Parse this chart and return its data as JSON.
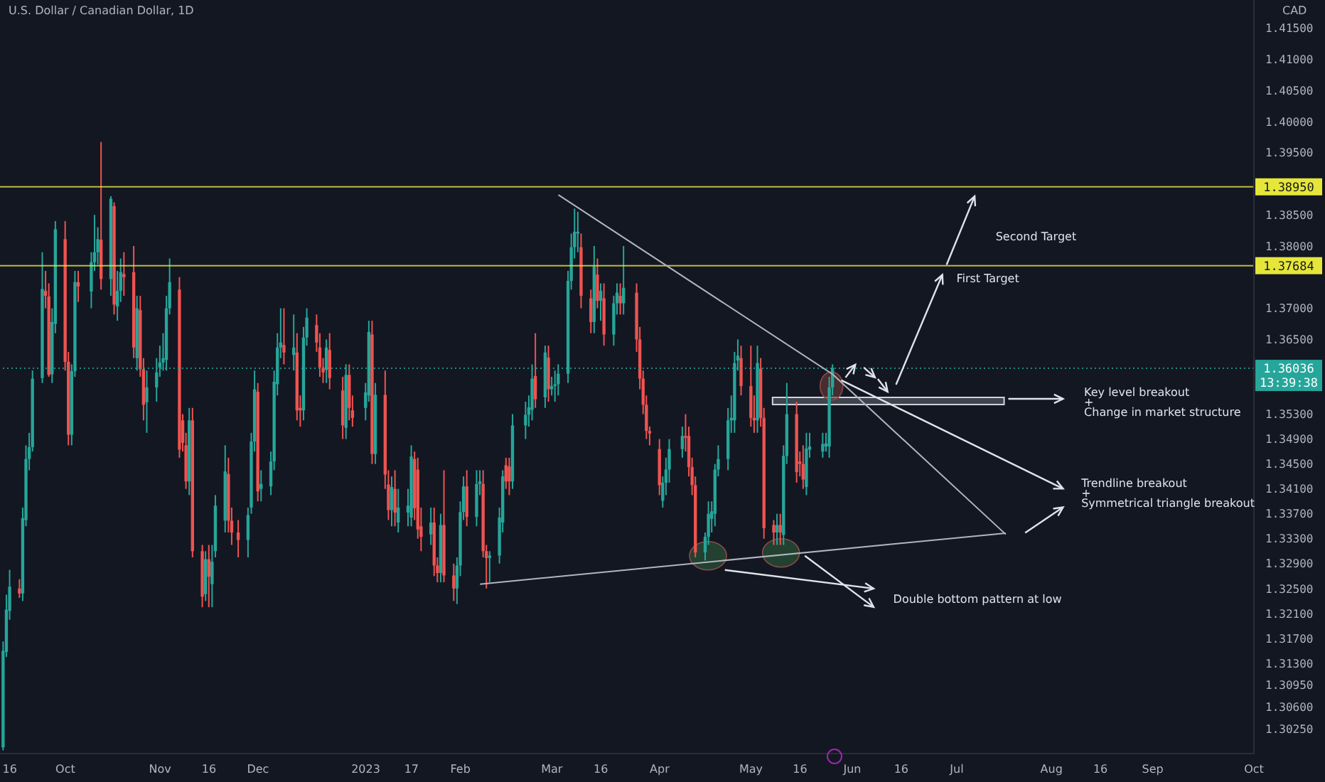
{
  "chart_data": {
    "type": "candlestick",
    "title": "U.S. Dollar / Canadian Dollar, 1D",
    "ylabel": "CAD",
    "marker": "none",
    "x": [
      "2022-09-14",
      "2022-09-15",
      "2022-09-16",
      "2022-09-19",
      "2022-09-20",
      "2022-09-21",
      "2022-09-22",
      "2022-09-23",
      "2022-09-26",
      "2022-09-27",
      "2022-09-28",
      "2022-09-29",
      "2022-09-30",
      "2022-10-03",
      "2022-10-04",
      "2022-10-05",
      "2022-10-06",
      "2022-10-07",
      "2022-10-11",
      "2022-10-12",
      "2022-10-13",
      "2022-10-14",
      "2022-10-17",
      "2022-10-18",
      "2022-10-19",
      "2022-10-20",
      "2022-10-21",
      "2022-10-24",
      "2022-10-25",
      "2022-10-26",
      "2022-10-27",
      "2022-10-28",
      "2022-10-31",
      "2022-11-01",
      "2022-11-02",
      "2022-11-03",
      "2022-11-04",
      "2022-11-07",
      "2022-11-08",
      "2022-11-09",
      "2022-11-10",
      "2022-11-11",
      "2022-11-14",
      "2022-11-15",
      "2022-11-16",
      "2022-11-17",
      "2022-11-18",
      "2022-11-21",
      "2022-11-22",
      "2022-11-23",
      "2022-11-25",
      "2022-11-28",
      "2022-11-29",
      "2022-11-30",
      "2022-12-01",
      "2022-12-02",
      "2022-12-05",
      "2022-12-06",
      "2022-12-07",
      "2022-12-08",
      "2022-12-09",
      "2022-12-12",
      "2022-12-13",
      "2022-12-14",
      "2022-12-15",
      "2022-12-16",
      "2022-12-19",
      "2022-12-20",
      "2022-12-21",
      "2022-12-22",
      "2022-12-23",
      "2022-12-27",
      "2022-12-28",
      "2022-12-29",
      "2022-12-30",
      "2023-01-03",
      "2023-01-04",
      "2023-01-05",
      "2023-01-06",
      "2023-01-09",
      "2023-01-10",
      "2023-01-11",
      "2023-01-12",
      "2023-01-13",
      "2023-01-16",
      "2023-01-17",
      "2023-01-18",
      "2023-01-19",
      "2023-01-20",
      "2023-01-23",
      "2023-01-24",
      "2023-01-25",
      "2023-01-26",
      "2023-01-27",
      "2023-01-30",
      "2023-01-31",
      "2023-02-01",
      "2023-02-02",
      "2023-02-03",
      "2023-02-06",
      "2023-02-07",
      "2023-02-08",
      "2023-02-09",
      "2023-02-10",
      "2023-02-13",
      "2023-02-14",
      "2023-02-15",
      "2023-02-16",
      "2023-02-17",
      "2023-02-21",
      "2023-02-22",
      "2023-02-23",
      "2023-02-24",
      "2023-02-27",
      "2023-02-28",
      "2023-03-01",
      "2023-03-02",
      "2023-03-03",
      "2023-03-06",
      "2023-03-07",
      "2023-03-08",
      "2023-03-09",
      "2023-03-10",
      "2023-03-13",
      "2023-03-14",
      "2023-03-15",
      "2023-03-16",
      "2023-03-17",
      "2023-03-20",
      "2023-03-21",
      "2023-03-22",
      "2023-03-23",
      "2023-03-27",
      "2023-03-28",
      "2023-03-29",
      "2023-03-30",
      "2023-03-31",
      "2023-04-03",
      "2023-04-04",
      "2023-04-05",
      "2023-04-06",
      "2023-04-10",
      "2023-04-11",
      "2023-04-12",
      "2023-04-13",
      "2023-04-14",
      "2023-04-17",
      "2023-04-18",
      "2023-04-19",
      "2023-04-20",
      "2023-04-21",
      "2023-04-24",
      "2023-04-25",
      "2023-04-26",
      "2023-04-27",
      "2023-04-28",
      "2023-05-01",
      "2023-05-02",
      "2023-05-03",
      "2023-05-04",
      "2023-05-05",
      "2023-05-08",
      "2023-05-09",
      "2023-05-10",
      "2023-05-11",
      "2023-05-12",
      "2023-05-15",
      "2023-05-16",
      "2023-05-17",
      "2023-05-18",
      "2023-05-19",
      "2023-05-23",
      "2023-05-24",
      "2023-05-25",
      "2023-05-26"
    ],
    "ohlc": [
      [
        1.2995,
        1.3165,
        1.299,
        1.315
      ],
      [
        1.3148,
        1.324,
        1.314,
        1.3216
      ],
      [
        1.3214,
        1.328,
        1.32,
        1.3253
      ],
      [
        1.325,
        1.3265,
        1.3235,
        1.3242
      ],
      [
        1.3242,
        1.338,
        1.323,
        1.3363
      ],
      [
        1.336,
        1.348,
        1.335,
        1.3458
      ],
      [
        1.3458,
        1.35,
        1.344,
        1.3477
      ],
      [
        1.3477,
        1.36,
        1.347,
        1.3587
      ],
      [
        1.3588,
        1.379,
        1.358,
        1.3731
      ],
      [
        1.3728,
        1.376,
        1.37,
        1.372
      ],
      [
        1.3719,
        1.374,
        1.359,
        1.3593
      ],
      [
        1.3594,
        1.37,
        1.358,
        1.3678
      ],
      [
        1.3675,
        1.384,
        1.366,
        1.3827
      ],
      [
        1.3811,
        1.384,
        1.36,
        1.3614
      ],
      [
        1.3614,
        1.363,
        1.348,
        1.3497
      ],
      [
        1.3497,
        1.361,
        1.348,
        1.3599
      ],
      [
        1.3599,
        1.376,
        1.359,
        1.3742
      ],
      [
        1.3742,
        1.376,
        1.371,
        1.3735
      ],
      [
        1.3727,
        1.379,
        1.37,
        1.3774
      ],
      [
        1.3774,
        1.385,
        1.376,
        1.379
      ],
      [
        1.379,
        1.383,
        1.377,
        1.3811
      ],
      [
        1.381,
        1.3967,
        1.373,
        1.3747
      ],
      [
        1.3747,
        1.388,
        1.372,
        1.3876
      ],
      [
        1.3864,
        1.387,
        1.369,
        1.3706
      ],
      [
        1.3703,
        1.376,
        1.368,
        1.3728
      ],
      [
        1.3728,
        1.378,
        1.371,
        1.3758
      ],
      [
        1.3755,
        1.379,
        1.372,
        1.375
      ],
      [
        1.3758,
        1.38,
        1.362,
        1.3637
      ],
      [
        1.362,
        1.372,
        1.36,
        1.37
      ],
      [
        1.3697,
        1.372,
        1.359,
        1.3602
      ],
      [
        1.3602,
        1.362,
        1.352,
        1.3545
      ],
      [
        1.3549,
        1.36,
        1.35,
        1.3573
      ],
      [
        1.3573,
        1.362,
        1.355,
        1.3597
      ],
      [
        1.3605,
        1.364,
        1.359,
        1.3613
      ],
      [
        1.3613,
        1.366,
        1.36,
        1.362
      ],
      [
        1.3617,
        1.372,
        1.36,
        1.37
      ],
      [
        1.37,
        1.378,
        1.369,
        1.3742
      ],
      [
        1.373,
        1.375,
        1.346,
        1.3473
      ],
      [
        1.352,
        1.353,
        1.347,
        1.3484
      ],
      [
        1.348,
        1.35,
        1.341,
        1.3422
      ],
      [
        1.3422,
        1.354,
        1.34,
        1.352
      ],
      [
        1.352,
        1.354,
        1.33,
        1.331
      ],
      [
        1.331,
        1.332,
        1.322,
        1.3237
      ],
      [
        1.3241,
        1.331,
        1.323,
        1.3297
      ],
      [
        1.3297,
        1.332,
        1.322,
        1.3269
      ],
      [
        1.3257,
        1.332,
        1.322,
        1.3293
      ],
      [
        1.331,
        1.34,
        1.33,
        1.3383
      ],
      [
        1.3359,
        1.348,
        1.334,
        1.3438
      ],
      [
        1.3434,
        1.346,
        1.334,
        1.3359
      ],
      [
        1.3359,
        1.338,
        1.332,
        1.334
      ],
      [
        1.334,
        1.336,
        1.33,
        1.3328
      ],
      [
        1.3328,
        1.338,
        1.33,
        1.3368
      ],
      [
        1.338,
        1.35,
        1.337,
        1.3486
      ],
      [
        1.3486,
        1.36,
        1.347,
        1.357
      ],
      [
        1.3566,
        1.358,
        1.339,
        1.3406
      ],
      [
        1.341,
        1.344,
        1.339,
        1.3418
      ],
      [
        1.3414,
        1.347,
        1.34,
        1.3454
      ],
      [
        1.3454,
        1.36,
        1.344,
        1.3582
      ],
      [
        1.3578,
        1.366,
        1.356,
        1.3637
      ],
      [
        1.3637,
        1.37,
        1.362,
        1.3645
      ],
      [
        1.3641,
        1.37,
        1.361,
        1.3629
      ],
      [
        1.3625,
        1.369,
        1.36,
        1.3637
      ],
      [
        1.3629,
        1.366,
        1.352,
        1.3536
      ],
      [
        1.354,
        1.356,
        1.351,
        1.3536
      ],
      [
        1.3536,
        1.367,
        1.352,
        1.3653
      ],
      [
        1.3653,
        1.37,
        1.364,
        1.3685
      ],
      [
        1.3673,
        1.369,
        1.363,
        1.3645
      ],
      [
        1.3637,
        1.366,
        1.359,
        1.3605
      ],
      [
        1.3605,
        1.362,
        1.358,
        1.3597
      ],
      [
        1.3601,
        1.365,
        1.358,
        1.3637
      ],
      [
        1.3633,
        1.366,
        1.357,
        1.3588
      ],
      [
        1.3568,
        1.359,
        1.349,
        1.3512
      ],
      [
        1.3508,
        1.361,
        1.349,
        1.3593
      ],
      [
        1.3593,
        1.361,
        1.352,
        1.354
      ],
      [
        1.3536,
        1.356,
        1.351,
        1.3524
      ],
      [
        1.354,
        1.358,
        1.352,
        1.3565
      ],
      [
        1.356,
        1.368,
        1.355,
        1.3662
      ],
      [
        1.3658,
        1.368,
        1.345,
        1.3466
      ],
      [
        1.3466,
        1.358,
        1.345,
        1.3561
      ],
      [
        1.3561,
        1.36,
        1.341,
        1.3433
      ],
      [
        1.3417,
        1.344,
        1.336,
        1.3376
      ],
      [
        1.3376,
        1.343,
        1.335,
        1.3413
      ],
      [
        1.341,
        1.344,
        1.335,
        1.3372
      ],
      [
        1.3356,
        1.341,
        1.334,
        1.338
      ],
      [
        1.3372,
        1.341,
        1.335,
        1.3383
      ],
      [
        1.3364,
        1.348,
        1.335,
        1.3462
      ],
      [
        1.3458,
        1.347,
        1.336,
        1.3379
      ],
      [
        1.3441,
        1.346,
        1.333,
        1.3345
      ],
      [
        1.335,
        1.338,
        1.331,
        1.3333
      ],
      [
        1.3337,
        1.338,
        1.332,
        1.3356
      ],
      [
        1.3356,
        1.338,
        1.327,
        1.3287
      ],
      [
        1.3287,
        1.33,
        1.326,
        1.3275
      ],
      [
        1.3275,
        1.337,
        1.326,
        1.3352
      ],
      [
        1.3352,
        1.344,
        1.326,
        1.3271
      ],
      [
        1.3271,
        1.329,
        1.323,
        1.325
      ],
      [
        1.325,
        1.33,
        1.3225,
        1.3287
      ],
      [
        1.3287,
        1.339,
        1.327,
        1.3373
      ],
      [
        1.3373,
        1.343,
        1.336,
        1.3414
      ],
      [
        1.3414,
        1.344,
        1.335,
        1.3365
      ],
      [
        1.3365,
        1.344,
        1.335,
        1.3418
      ],
      [
        1.3418,
        1.344,
        1.34,
        1.3422
      ],
      [
        1.3418,
        1.344,
        1.33,
        1.331
      ],
      [
        1.331,
        1.332,
        1.325,
        1.3299
      ],
      [
        1.3299,
        1.331,
        1.326,
        1.3303
      ],
      [
        1.3303,
        1.338,
        1.329,
        1.3364
      ],
      [
        1.3356,
        1.344,
        1.334,
        1.343
      ],
      [
        1.3448,
        1.346,
        1.341,
        1.3422
      ],
      [
        1.3446,
        1.346,
        1.34,
        1.3422
      ],
      [
        1.3422,
        1.353,
        1.341,
        1.3512
      ],
      [
        1.3512,
        1.355,
        1.349,
        1.3529
      ],
      [
        1.3529,
        1.356,
        1.351,
        1.3541
      ],
      [
        1.3537,
        1.361,
        1.352,
        1.3587
      ],
      [
        1.3591,
        1.366,
        1.354,
        1.3554
      ],
      [
        1.3557,
        1.364,
        1.354,
        1.3629
      ],
      [
        1.3621,
        1.364,
        1.355,
        1.357
      ],
      [
        1.357,
        1.359,
        1.356,
        1.3575
      ],
      [
        1.3575,
        1.36,
        1.355,
        1.3578
      ],
      [
        1.3578,
        1.361,
        1.356,
        1.3595
      ],
      [
        1.3595,
        1.376,
        1.358,
        1.3744
      ],
      [
        1.3744,
        1.382,
        1.373,
        1.3798
      ],
      [
        1.3798,
        1.386,
        1.378,
        1.3823
      ],
      [
        1.382,
        1.3855,
        1.379,
        1.3823
      ],
      [
        1.3798,
        1.382,
        1.37,
        1.372
      ],
      [
        1.3716,
        1.373,
        1.366,
        1.3678
      ],
      [
        1.3678,
        1.38,
        1.366,
        1.3767
      ],
      [
        1.3754,
        1.378,
        1.37,
        1.3712
      ],
      [
        1.3712,
        1.374,
        1.368,
        1.3728
      ],
      [
        1.3716,
        1.374,
        1.364,
        1.3658
      ],
      [
        1.3658,
        1.372,
        1.364,
        1.3708
      ],
      [
        1.3708,
        1.374,
        1.369,
        1.3725
      ],
      [
        1.372,
        1.374,
        1.369,
        1.3708
      ],
      [
        1.3708,
        1.38,
        1.369,
        1.3733
      ],
      [
        1.3725,
        1.374,
        1.363,
        1.365
      ],
      [
        1.365,
        1.367,
        1.357,
        1.3587
      ],
      [
        1.3587,
        1.36,
        1.353,
        1.3545
      ],
      [
        1.3545,
        1.356,
        1.349,
        1.3503
      ],
      [
        1.3503,
        1.351,
        1.348,
        1.3499
      ],
      [
        1.3474,
        1.349,
        1.34,
        1.3416
      ],
      [
        1.3391,
        1.343,
        1.338,
        1.342
      ],
      [
        1.342,
        1.346,
        1.34,
        1.3441
      ],
      [
        1.3441,
        1.349,
        1.342,
        1.3474
      ],
      [
        1.3474,
        1.351,
        1.346,
        1.3495
      ],
      [
        1.3495,
        1.353,
        1.347,
        1.3492
      ],
      [
        1.3495,
        1.351,
        1.343,
        1.3445
      ],
      [
        1.3445,
        1.346,
        1.34,
        1.3416
      ],
      [
        1.3416,
        1.343,
        1.33,
        1.3308
      ],
      [
        1.3308,
        1.334,
        1.3295,
        1.3333
      ],
      [
        1.3333,
        1.339,
        1.332,
        1.337
      ],
      [
        1.3362,
        1.339,
        1.334,
        1.3374
      ],
      [
        1.337,
        1.345,
        1.335,
        1.3441
      ],
      [
        1.3441,
        1.348,
        1.343,
        1.3458
      ],
      [
        1.3458,
        1.354,
        1.344,
        1.352
      ],
      [
        1.352,
        1.356,
        1.35,
        1.3524
      ],
      [
        1.352,
        1.363,
        1.35,
        1.3612
      ],
      [
        1.3616,
        1.365,
        1.36,
        1.3624
      ],
      [
        1.362,
        1.364,
        1.356,
        1.3575
      ],
      [
        1.3575,
        1.364,
        1.351,
        1.3524
      ],
      [
        1.3524,
        1.356,
        1.35,
        1.352
      ],
      [
        1.352,
        1.364,
        1.35,
        1.3612
      ],
      [
        1.3603,
        1.362,
        1.351,
        1.3524
      ],
      [
        1.3524,
        1.354,
        1.333,
        1.3347
      ],
      [
        1.3352,
        1.336,
        1.332,
        1.334
      ],
      [
        1.334,
        1.337,
        1.332,
        1.3352
      ],
      [
        1.3352,
        1.337,
        1.332,
        1.334
      ],
      [
        1.3336,
        1.348,
        1.332,
        1.3463
      ],
      [
        1.3463,
        1.358,
        1.345,
        1.353
      ],
      [
        1.353,
        1.355,
        1.342,
        1.3437
      ],
      [
        1.3454,
        1.347,
        1.343,
        1.345
      ],
      [
        1.345,
        1.348,
        1.341,
        1.3425
      ],
      [
        1.3413,
        1.35,
        1.34,
        1.3475
      ],
      [
        1.3473,
        1.35,
        1.346,
        1.3478
      ],
      [
        1.347,
        1.35,
        1.346,
        1.3482
      ],
      [
        1.3478,
        1.35,
        1.347,
        1.3483
      ],
      [
        1.3478,
        1.359,
        1.346,
        1.3573
      ],
      [
        1.3573,
        1.361,
        1.356,
        1.3604
      ]
    ],
    "colors": [
      "#26a69a",
      "#26a69a",
      "#26a69a",
      "#ef5350",
      "#26a69a",
      "#26a69a",
      "#26a69a",
      "#26a69a",
      "#26a69a",
      "#ef5350",
      "#ef5350",
      "#26a69a",
      "#26a69a",
      "#ef5350",
      "#ef5350",
      "#26a69a",
      "#26a69a",
      "#ef5350",
      "#26a69a",
      "#26a69a",
      "#26a69a",
      "#ef5350",
      "#26a69a",
      "#ef5350",
      "#26a69a",
      "#26a69a",
      "#ef5350",
      "#ef5350",
      "#26a69a",
      "#ef5350",
      "#ef5350",
      "#26a69a",
      "#26a69a",
      "#26a69a",
      "#26a69a",
      "#26a69a",
      "#26a69a",
      "#ef5350",
      "#ef5350",
      "#ef5350",
      "#26a69a",
      "#ef5350",
      "#ef5350",
      "#26a69a",
      "#ef5350",
      "#26a69a",
      "#26a69a",
      "#26a69a",
      "#ef5350",
      "#ef5350",
      "#ef5350",
      "#26a69a",
      "#26a69a",
      "#26a69a",
      "#ef5350",
      "#26a69a",
      "#26a69a",
      "#26a69a",
      "#26a69a",
      "#26a69a",
      "#ef5350",
      "#26a69a",
      "#ef5350",
      "#ef5350",
      "#26a69a",
      "#26a69a",
      "#ef5350",
      "#ef5350",
      "#ef5350",
      "#26a69a",
      "#ef5350",
      "#ef5350",
      "#26a69a",
      "#ef5350",
      "#ef5350",
      "#26a69a",
      "#26a69a",
      "#ef5350",
      "#26a69a",
      "#ef5350",
      "#ef5350",
      "#26a69a",
      "#ef5350",
      "#26a69a",
      "#26a69a",
      "#26a69a",
      "#ef5350",
      "#ef5350",
      "#ef5350",
      "#26a69a",
      "#ef5350",
      "#ef5350",
      "#26a69a",
      "#ef5350",
      "#ef5350",
      "#26a69a",
      "#26a69a",
      "#26a69a",
      "#ef5350",
      "#26a69a",
      "#26a69a",
      "#ef5350",
      "#ef5350",
      "#26a69a",
      "#26a69a",
      "#26a69a",
      "#ef5350",
      "#ef5350",
      "#26a69a",
      "#26a69a",
      "#26a69a",
      "#26a69a",
      "#ef5350",
      "#26a69a",
      "#ef5350",
      "#26a69a",
      "#26a69a",
      "#26a69a",
      "#26a69a",
      "#26a69a",
      "#26a69a",
      "#26a69a",
      "#ef5350",
      "#ef5350",
      "#26a69a",
      "#ef5350",
      "#26a69a",
      "#ef5350",
      "#26a69a",
      "#26a69a",
      "#ef5350",
      "#26a69a",
      "#ef5350",
      "#ef5350",
      "#ef5350",
      "#ef5350",
      "#ef5350",
      "#ef5350",
      "#26a69a",
      "#26a69a",
      "#26a69a",
      "#26a69a",
      "#ef5350",
      "#ef5350",
      "#ef5350",
      "#ef5350",
      "#26a69a",
      "#26a69a",
      "#26a69a",
      "#26a69a",
      "#26a69a",
      "#26a69a",
      "#26a69a",
      "#26a69a",
      "#26a69a",
      "#ef5350",
      "#ef5350",
      "#ef5350",
      "#26a69a",
      "#ef5350",
      "#ef5350",
      "#ef5350",
      "#26a69a",
      "#ef5350",
      "#26a69a",
      "#26a69a",
      "#ef5350",
      "#ef5350",
      "#ef5350",
      "#26a69a",
      "#26a69a",
      "#26a69a",
      "#26a69a",
      "#26a69a",
      "#26a69a"
    ],
    "series": [
      {
        "type": "line",
        "color": "#b2b5be",
        "x": [
          "2023-03-03",
          "2023-05-26",
          "2023-07-18"
        ],
        "values": [
          1.3882,
          1.3594,
          1.3337
        ]
      },
      {
        "type": "line",
        "color": "#b2b5be",
        "x": [
          "2023-02-07",
          "2023-07-18"
        ],
        "values": [
          1.3257,
          1.3339
        ]
      }
    ],
    "xlim": [
      "2022-09-13",
      "2023-10-02"
    ],
    "xticks": [
      {
        "value": "2022-09-16",
        "label": "16"
      },
      {
        "value": "2022-10-03",
        "label": "Oct"
      },
      {
        "value": "2022-11-01",
        "label": "Nov"
      },
      {
        "value": "2022-11-16",
        "label": "16"
      },
      {
        "value": "2022-12-01",
        "label": "Dec"
      },
      {
        "value": "2023-01-03",
        "label": "2023"
      },
      {
        "value": "2023-01-17",
        "label": "17"
      },
      {
        "value": "2023-02-01",
        "label": "Feb"
      },
      {
        "value": "2023-03-01",
        "label": "Mar"
      },
      {
        "value": "2023-03-16",
        "label": "16"
      },
      {
        "value": "2023-04-03",
        "label": "Apr"
      },
      {
        "value": "2023-05-01",
        "label": "May"
      },
      {
        "value": "2023-05-16",
        "label": "16"
      },
      {
        "value": "2023-06-01",
        "label": "Jun"
      },
      {
        "value": "2023-06-16",
        "label": "16"
      },
      {
        "value": "2023-07-03",
        "label": "Jul"
      },
      {
        "value": "2023-08-01",
        "label": "Aug"
      },
      {
        "value": "2023-08-16",
        "label": "16"
      },
      {
        "value": "2023-09-01",
        "label": "Sep"
      },
      {
        "value": "2023-10-02",
        "label": "Oct"
      }
    ],
    "ylim": [
      1.2985,
      1.4195
    ],
    "yticks": [
      {
        "value": 1.415,
        "label": "1.41500"
      },
      {
        "value": 1.41,
        "label": "1.41000"
      },
      {
        "value": 1.405,
        "label": "1.40500"
      },
      {
        "value": 1.4,
        "label": "1.40000"
      },
      {
        "value": 1.395,
        "label": "1.39500"
      },
      {
        "value": 1.385,
        "label": "1.38500"
      },
      {
        "value": 1.38,
        "label": "1.38000"
      },
      {
        "value": 1.37,
        "label": "1.37000"
      },
      {
        "value": 1.365,
        "label": "1.36500"
      },
      {
        "value": 1.353,
        "label": "1.35300"
      },
      {
        "value": 1.349,
        "label": "1.34900"
      },
      {
        "value": 1.345,
        "label": "1.34500"
      },
      {
        "value": 1.341,
        "label": "1.34100"
      },
      {
        "value": 1.337,
        "label": "1.33700"
      },
      {
        "value": 1.333,
        "label": "1.33300"
      },
      {
        "value": 1.329,
        "label": "1.32900"
      },
      {
        "value": 1.325,
        "label": "1.32500"
      },
      {
        "value": 1.321,
        "label": "1.32100"
      },
      {
        "value": 1.317,
        "label": "1.31700"
      },
      {
        "value": 1.313,
        "label": "1.31300"
      },
      {
        "value": 1.3095,
        "label": "1.30950"
      },
      {
        "value": 1.306,
        "label": "1.30600"
      },
      {
        "value": 1.3025,
        "label": "1.30250"
      }
    ],
    "ref_lines": [
      {
        "axis": "y",
        "value": 1.3895,
        "label": "1.38950",
        "color": "#e6e63a"
      },
      {
        "axis": "y",
        "value": 1.37684,
        "label": "1.37684",
        "color": "#e6e63a"
      },
      {
        "axis": "y",
        "value": 1.36036,
        "label": "1.36036\n13:39:38",
        "color": "#26a69a",
        "line_style": "dotted"
      }
    ],
    "annotations": [
      "Second Target",
      "First Target",
      "Key level breakout\n+\nChange in market structure",
      "Trendline breakout\n+\nSymmetrical triangle breakout",
      "Double bottom pattern at low"
    ]
  }
}
